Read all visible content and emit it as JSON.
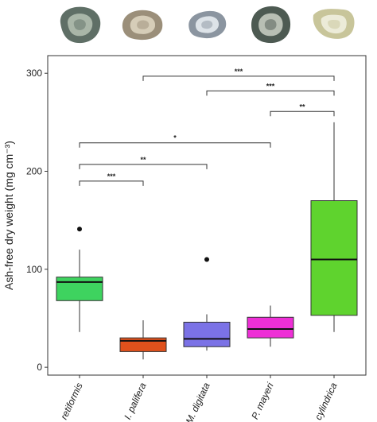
{
  "chart_data": {
    "type": "box",
    "ylabel": "Ash-free dry weight (mg cm⁻³)",
    "ylim": [
      -8,
      318
    ],
    "yticks": [
      0,
      100,
      200,
      300
    ],
    "categories": [
      "G. retiformis",
      "I. palifera",
      "M. digitata",
      "P. mayeri",
      "P. cylindrica"
    ],
    "boxes": [
      {
        "name": "G. retiformis",
        "color": "#3ed35f",
        "whisker_low": 36,
        "q1": 68,
        "median": 87,
        "q3": 92,
        "whisker_high": 120,
        "outliers": [
          141
        ]
      },
      {
        "name": "I. palifera",
        "color": "#e0511c",
        "whisker_low": 8,
        "q1": 16,
        "median": 27,
        "q3": 30,
        "whisker_high": 48,
        "outliers": []
      },
      {
        "name": "M. digitata",
        "color": "#7b72e6",
        "whisker_low": 17,
        "q1": 21,
        "median": 29,
        "q3": 46,
        "whisker_high": 54,
        "outliers": [
          110
        ]
      },
      {
        "name": "P. mayeri",
        "color": "#ee2fd6",
        "whisker_low": 21,
        "q1": 30,
        "median": 39,
        "q3": 51,
        "whisker_high": 63,
        "outliers": []
      },
      {
        "name": "P. cylindrica",
        "color": "#5fd32e",
        "whisker_low": 36,
        "q1": 53,
        "median": 110,
        "q3": 170,
        "whisker_high": 250,
        "outliers": []
      }
    ],
    "significance": [
      {
        "from": 1,
        "to": 4,
        "y": 297,
        "label": "***"
      },
      {
        "from": 2,
        "to": 4,
        "y": 282,
        "label": "***"
      },
      {
        "from": 3,
        "to": 4,
        "y": 261,
        "label": "**"
      },
      {
        "from": 0,
        "to": 3,
        "y": 229,
        "label": "*"
      },
      {
        "from": 0,
        "to": 2,
        "y": 207,
        "label": "**"
      },
      {
        "from": 0,
        "to": 1,
        "y": 190,
        "label": "***"
      }
    ]
  },
  "thumbnails": [
    {
      "name": "G. retiformis",
      "outer": "#5f6f66",
      "inner": "#a9b6a8"
    },
    {
      "name": "I. palifera",
      "outer": "#9b8f7a",
      "inner": "#d6cdb8"
    },
    {
      "name": "M. digitata",
      "outer": "#8b95a0",
      "inner": "#dde3e8"
    },
    {
      "name": "P. mayeri",
      "outer": "#4d5a52",
      "inner": "#b8bfb4"
    },
    {
      "name": "P. cylindrica",
      "outer": "#c8c59a",
      "inner": "#ecebd8"
    }
  ]
}
